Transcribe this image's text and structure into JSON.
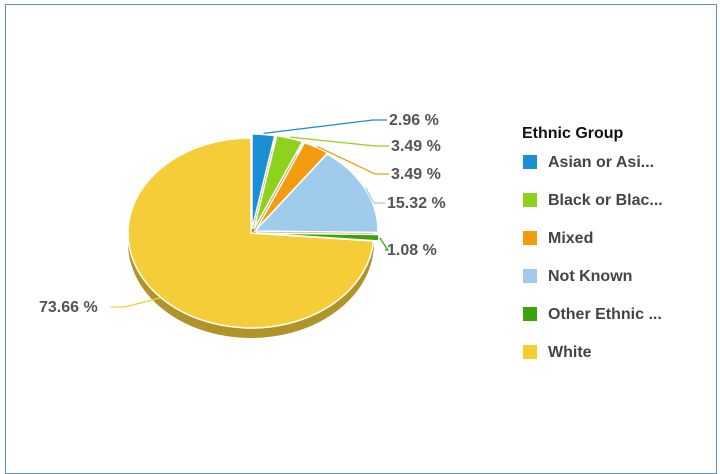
{
  "chart_data": {
    "type": "pie",
    "legend_title": "Ethnic Group",
    "legend_position": "right",
    "categories": [
      "Asian or Asi...",
      "Black or Blac...",
      "Mixed",
      "Not Known",
      "Other Ethnic ...",
      "White"
    ],
    "values": [
      2.96,
      3.49,
      3.49,
      15.32,
      1.08,
      73.66
    ],
    "data_labels": [
      "2.96 %",
      "3.49 %",
      "3.49 %",
      "15.32 %",
      "1.08 %",
      "73.66 %"
    ],
    "colors": [
      "#1b8fd4",
      "#8ed11e",
      "#f39c12",
      "#9fcbec",
      "#3aa40a",
      "#f4cd38"
    ]
  }
}
